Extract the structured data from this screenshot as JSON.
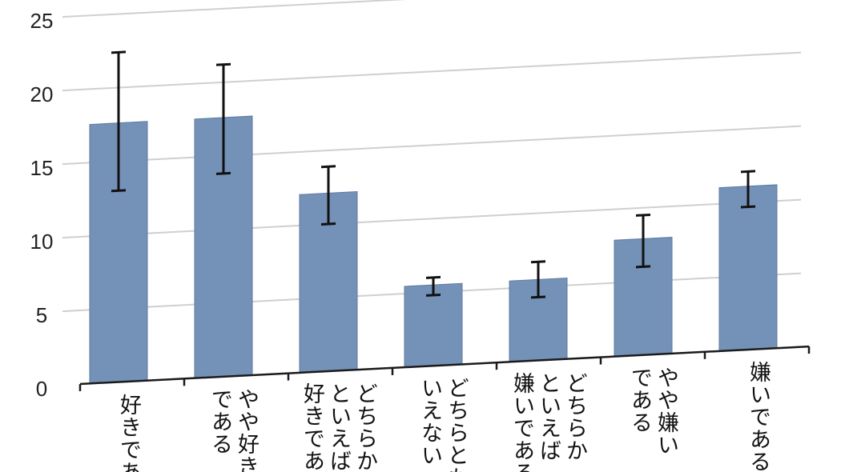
{
  "chart_data": {
    "type": "bar",
    "title": "",
    "xlabel": "",
    "ylabel": "",
    "categories": [
      "好きである",
      "やや好き\nである",
      "どちらか\nといえば\n好きである",
      "どちらとも\nいえない",
      "どちらか\nといえば\n嫌いである",
      "やや嫌い\nである",
      "嫌いである"
    ],
    "values": [
      17.6,
      17.6,
      12.1,
      5.5,
      5.5,
      7.9,
      11.1
    ],
    "error_low": [
      13.0,
      13.8,
      10.0,
      4.8,
      4.3,
      6.0,
      9.7
    ],
    "error_high": [
      22.4,
      21.2,
      13.9,
      6.0,
      6.7,
      9.5,
      12.1
    ],
    "ylim": [
      0,
      25
    ],
    "yticks": [
      "0",
      "5",
      "10",
      "15",
      "20",
      "25"
    ],
    "grid": true,
    "legend": "none"
  },
  "colors": {
    "bar": "#7491B8",
    "bar_edge": "#5F7AA0",
    "error_bar": "#111111",
    "gridline": "#CFCFCF",
    "axis": "#1A1A1A"
  }
}
